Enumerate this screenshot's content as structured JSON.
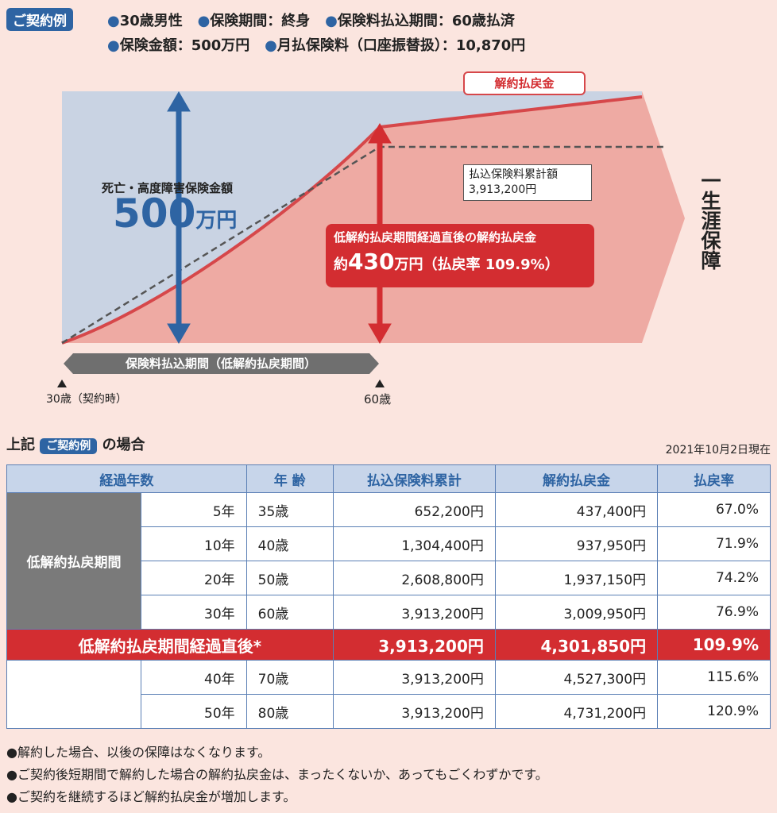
{
  "header": {
    "badge": "ご契約例",
    "conditions": [
      "30歳男性",
      "保険期間：終身",
      "保険料払込期間：60歳払済",
      "保険金額：500万円",
      "月払保険料（口座振替扱）：10,870円"
    ]
  },
  "chart": {
    "refund_label": "解約払戻金",
    "death_label": "死亡・高度障害保険金額",
    "death_amount": "500",
    "death_unit": "万円",
    "paid_label": "払込保険料累計額",
    "paid_value": "3,913,200円",
    "callout_line1": "低解約払戻期間経過直後の解約払戻金",
    "callout_prefix": "約",
    "callout_amount": "430",
    "callout_suffix": "万円（払戻率 109.9%）",
    "lifetime_label": "一生涯保障",
    "period_label": "保険料払込期間（低解約払戻期間）",
    "start_age": "30歳（契約時）",
    "end_age": "60歳"
  },
  "table_section": {
    "prefix": "上記",
    "badge": "ご契約例",
    "suffix": "の場合",
    "date": "2021年10月2日現在"
  },
  "table": {
    "headers": [
      "経過年数",
      "年 齢",
      "払込保険料累計",
      "解約払戻金",
      "払戻率"
    ],
    "group_label": "低解約払戻期間",
    "rows": [
      [
        "5年",
        "35歳",
        "652,200円",
        "437,400円",
        "67.0%"
      ],
      [
        "10年",
        "40歳",
        "1,304,400円",
        "937,950円",
        "71.9%"
      ],
      [
        "20年",
        "50歳",
        "2,608,800円",
        "1,937,150円",
        "74.2%"
      ],
      [
        "30年",
        "60歳",
        "3,913,200円",
        "3,009,950円",
        "76.9%"
      ]
    ],
    "highlight": {
      "label": "低解約払戻期間経過直後*",
      "paid": "3,913,200円",
      "refund": "4,301,850円",
      "rate": "109.9%"
    },
    "after_rows": [
      [
        "40年",
        "70歳",
        "3,913,200円",
        "4,527,300円",
        "115.6%"
      ],
      [
        "50年",
        "80歳",
        "3,913,200円",
        "4,731,200円",
        "120.9%"
      ]
    ]
  },
  "notes": [
    "●解約した場合、以後の保障はなくなります。",
    "●ご契約後短期間で解約した場合の解約払戻金は、まったくないか、あってもごくわずかです。",
    "●ご契約を継続するほど解約払戻金が増加します。"
  ],
  "colors": {
    "blue": "#2e64a3",
    "red": "#d32d31",
    "bg": "#fbe5df"
  }
}
